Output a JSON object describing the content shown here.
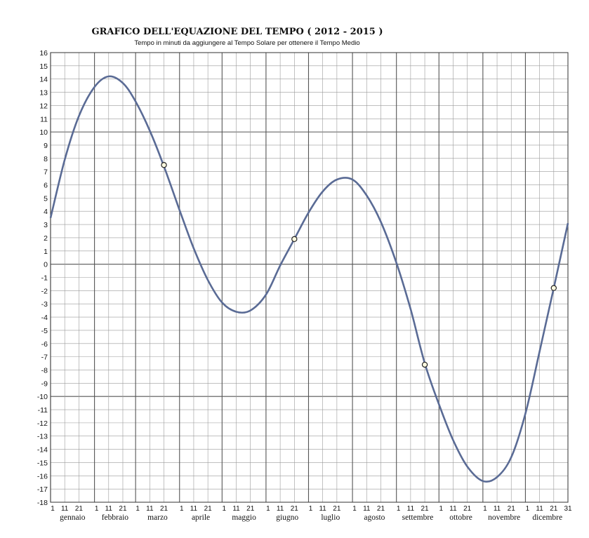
{
  "chart_data": {
    "type": "line",
    "title": "GRAFICO DELL'EQUAZIONE DEL TEMPO ( 2012 - 2015 )",
    "subtitle": "Tempo in minuti da aggiungere al Tempo Solare per ottenere il Tempo Medio",
    "xlabel": "",
    "ylabel": "",
    "ylim": [
      -18,
      16
    ],
    "y_ticks": [
      "16",
      "15",
      "14",
      "13",
      "12",
      "11",
      "10",
      "9",
      "8",
      "7",
      "6",
      "5",
      "4",
      "3",
      "2",
      "1",
      "0",
      "-1",
      "-2",
      "-3",
      "-4",
      "-5",
      "-6",
      "-7",
      "-8",
      "-9",
      "-10",
      "-11",
      "-12",
      "-13",
      "-14",
      "-15",
      "-16",
      "-17",
      "-18"
    ],
    "months": [
      "gennaio",
      "febbraio",
      "marzo",
      "aprile",
      "maggio",
      "giugno",
      "luglio",
      "agosto",
      "settembre",
      "ottobre",
      "novembre",
      "dicembre"
    ],
    "day_ticks": [
      "1",
      "11",
      "21"
    ],
    "last_day_tick": "31",
    "grid": true,
    "series": [
      {
        "values": [
          {
            "x": "01-01",
            "y": 3.5
          },
          {
            "x": "01-11",
            "y": 7.9
          },
          {
            "x": "01-21",
            "y": 11.2
          },
          {
            "x": "02-01",
            "y": 13.4
          },
          {
            "x": "02-11",
            "y": 14.2
          },
          {
            "x": "02-21",
            "y": 13.7
          },
          {
            "x": "03-01",
            "y": 12.3
          },
          {
            "x": "03-11",
            "y": 10.1
          },
          {
            "x": "03-21",
            "y": 7.4
          },
          {
            "x": "04-01",
            "y": 4.1
          },
          {
            "x": "04-11",
            "y": 1.2
          },
          {
            "x": "04-21",
            "y": -1.2
          },
          {
            "x": "05-01",
            "y": -2.9
          },
          {
            "x": "05-11",
            "y": -3.6
          },
          {
            "x": "05-21",
            "y": -3.5
          },
          {
            "x": "06-01",
            "y": -2.3
          },
          {
            "x": "06-11",
            "y": -0.1
          },
          {
            "x": "06-21",
            "y": 1.9
          },
          {
            "x": "07-01",
            "y": 3.9
          },
          {
            "x": "07-11",
            "y": 5.5
          },
          {
            "x": "07-21",
            "y": 6.4
          },
          {
            "x": "08-01",
            "y": 6.4
          },
          {
            "x": "08-11",
            "y": 5.2
          },
          {
            "x": "08-21",
            "y": 3.2
          },
          {
            "x": "09-01",
            "y": 0.1
          },
          {
            "x": "09-11",
            "y": -3.4
          },
          {
            "x": "09-21",
            "y": -7.5
          },
          {
            "x": "10-01",
            "y": -10.6
          },
          {
            "x": "10-11",
            "y": -13.3
          },
          {
            "x": "10-21",
            "y": -15.3
          },
          {
            "x": "11-01",
            "y": -16.4
          },
          {
            "x": "11-11",
            "y": -16.1
          },
          {
            "x": "11-21",
            "y": -14.6
          },
          {
            "x": "12-01",
            "y": -11.3
          },
          {
            "x": "12-11",
            "y": -6.6
          },
          {
            "x": "12-21",
            "y": -1.8
          },
          {
            "x": "12-31",
            "y": 3.1
          }
        ]
      }
    ],
    "markers": [
      {
        "x": "03-21",
        "y": 7.5
      },
      {
        "x": "06-21",
        "y": 1.9
      },
      {
        "x": "09-21",
        "y": -7.6
      },
      {
        "x": "12-21",
        "y": -1.8
      }
    ],
    "colors": {
      "line": "#5a6b95",
      "grid_minor": "#9a9a9a",
      "grid_major": "#555555",
      "marker_fill": "#fffbe0"
    }
  }
}
